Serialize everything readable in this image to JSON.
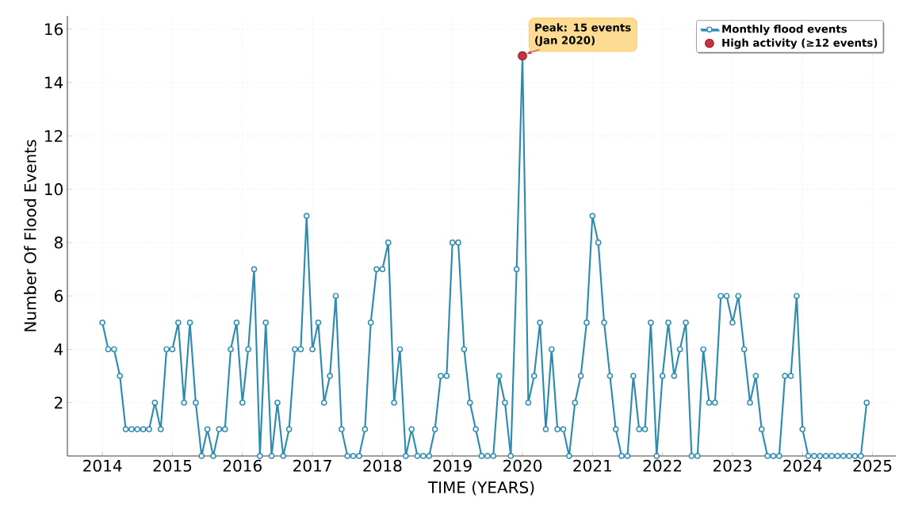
{
  "chart_data": {
    "type": "line",
    "xlabel": "TIME (YEARS)",
    "ylabel": "Number Of Flood Events",
    "x": [
      "2014-01",
      "2014-02",
      "2014-03",
      "2014-04",
      "2014-05",
      "2014-06",
      "2014-07",
      "2014-08",
      "2014-09",
      "2014-10",
      "2014-11",
      "2014-12",
      "2015-01",
      "2015-02",
      "2015-03",
      "2015-04",
      "2015-05",
      "2015-06",
      "2015-07",
      "2015-08",
      "2015-09",
      "2015-10",
      "2015-11",
      "2015-12",
      "2016-01",
      "2016-02",
      "2016-03",
      "2016-04",
      "2016-05",
      "2016-06",
      "2016-07",
      "2016-08",
      "2016-09",
      "2016-10",
      "2016-11",
      "2016-12",
      "2017-01",
      "2017-02",
      "2017-03",
      "2017-04",
      "2017-05",
      "2017-06",
      "2017-07",
      "2017-08",
      "2017-09",
      "2017-10",
      "2017-11",
      "2017-12",
      "2018-01",
      "2018-02",
      "2018-03",
      "2018-04",
      "2018-05",
      "2018-06",
      "2018-07",
      "2018-08",
      "2018-09",
      "2018-10",
      "2018-11",
      "2018-12",
      "2019-01",
      "2019-02",
      "2019-03",
      "2019-04",
      "2019-05",
      "2019-06",
      "2019-07",
      "2019-08",
      "2019-09",
      "2019-10",
      "2019-11",
      "2019-12",
      "2020-01",
      "2020-02",
      "2020-03",
      "2020-04",
      "2020-05",
      "2020-06",
      "2020-07",
      "2020-08",
      "2020-09",
      "2020-10",
      "2020-11",
      "2020-12",
      "2021-01",
      "2021-02",
      "2021-03",
      "2021-04",
      "2021-05",
      "2021-06",
      "2021-07",
      "2021-08",
      "2021-09",
      "2021-10",
      "2021-11",
      "2021-12",
      "2022-01",
      "2022-02",
      "2022-03",
      "2022-04",
      "2022-05",
      "2022-06",
      "2022-07",
      "2022-08",
      "2022-09",
      "2022-10",
      "2022-11",
      "2022-12",
      "2023-01",
      "2023-02",
      "2023-03",
      "2023-04",
      "2023-05",
      "2023-06",
      "2023-07",
      "2023-08",
      "2023-09",
      "2023-10",
      "2023-11",
      "2023-12",
      "2024-01",
      "2024-02",
      "2024-03",
      "2024-04",
      "2024-05",
      "2024-06",
      "2024-07",
      "2024-08",
      "2024-09",
      "2024-10",
      "2024-11",
      "2024-12"
    ],
    "series": [
      {
        "name": "Monthly flood events",
        "color": "#2e8bb0",
        "marker": "circle",
        "values": [
          5,
          4,
          4,
          3,
          1,
          1,
          1,
          1,
          1,
          2,
          1,
          4,
          4,
          5,
          2,
          5,
          2,
          0,
          1,
          0,
          1,
          1,
          4,
          5,
          2,
          4,
          7,
          0,
          5,
          0,
          2,
          0,
          1,
          4,
          4,
          9,
          4,
          5,
          2,
          3,
          6,
          1,
          0,
          0,
          0,
          1,
          5,
          7,
          7,
          8,
          2,
          4,
          0,
          1,
          0,
          0,
          0,
          1,
          3,
          3,
          8,
          8,
          4,
          2,
          1,
          0,
          0,
          0,
          3,
          2,
          0,
          7,
          15,
          2,
          3,
          5,
          1,
          4,
          1,
          1,
          0,
          2,
          3,
          5,
          9,
          8,
          5,
          3,
          1,
          0,
          0,
          3,
          1,
          1,
          5,
          0,
          3,
          5,
          3,
          4,
          5,
          0,
          0,
          4,
          2,
          2,
          6,
          6,
          5,
          6,
          4,
          2,
          3,
          1,
          0,
          0,
          0,
          3,
          3,
          6,
          1,
          0,
          0,
          0,
          0,
          0,
          0,
          0,
          0,
          0,
          0,
          2
        ]
      },
      {
        "name": "High activity (≥12 events)",
        "type": "scatter",
        "color": "#c8323c",
        "marker": "circle",
        "x": [
          "2020-01"
        ],
        "values": [
          15
        ]
      }
    ],
    "annotations": [
      {
        "text": "Peak: 15 events (Jan 2020)",
        "x": "2020-01",
        "y": 15
      }
    ],
    "xlim": [
      "2013-07",
      "2025-05"
    ],
    "xticks": [
      "2014",
      "2015",
      "2016",
      "2017",
      "2018",
      "2019",
      "2020",
      "2021",
      "2022",
      "2023",
      "2024",
      "2025"
    ],
    "ylim": [
      0,
      16.5
    ],
    "yticks": [
      2,
      4,
      6,
      8,
      10,
      12,
      14,
      16
    ],
    "grid": true,
    "legend": "top right",
    "line_style": "solid"
  }
}
